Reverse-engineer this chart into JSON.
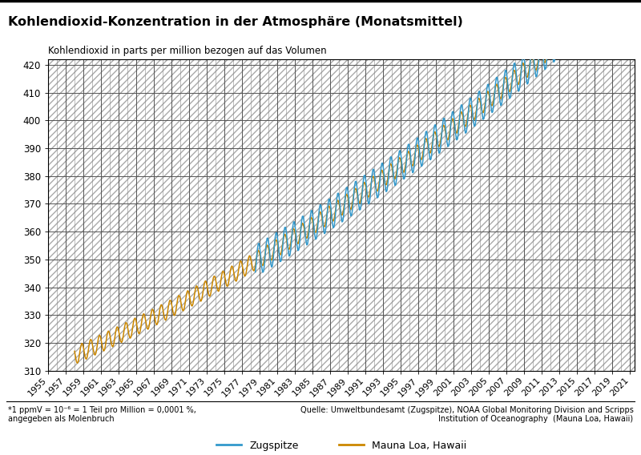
{
  "title": "Kohlendioxid-Konzentration in der Atmosphäre (Monatsmittel)",
  "subtitle": "Kohlendioxid in parts per million bezogen auf das Volumen",
  "ylim": [
    310,
    422
  ],
  "yticks": [
    310,
    320,
    330,
    340,
    350,
    360,
    370,
    380,
    390,
    400,
    410,
    420
  ],
  "xlim": [
    1955.0,
    2021.5
  ],
  "xtick_years": [
    1955,
    1957,
    1959,
    1961,
    1963,
    1965,
    1967,
    1969,
    1971,
    1973,
    1975,
    1977,
    1979,
    1981,
    1983,
    1985,
    1987,
    1989,
    1991,
    1993,
    1995,
    1997,
    1999,
    2001,
    2003,
    2005,
    2007,
    2009,
    2011,
    2013,
    2015,
    2017,
    2019,
    2021
  ],
  "color_zugspitze": "#3399cc",
  "color_mauna_loa": "#cc8800",
  "footnote_left": "*1 ppmV = 10⁻⁶ = 1 Teil pro Million = 0,0001 %,\nangegeben als Molenbruch",
  "footnote_right": "Quelle: Umweltbundesamt (Zugspitze), NOAA Global Monitoring Division and Scripps\nInstitution of Oceanography  (Mauna Loa, Hawaii)",
  "legend_zugspitze": "Zugspitze",
  "legend_mauna_loa": "Mauna Loa, Hawaii"
}
